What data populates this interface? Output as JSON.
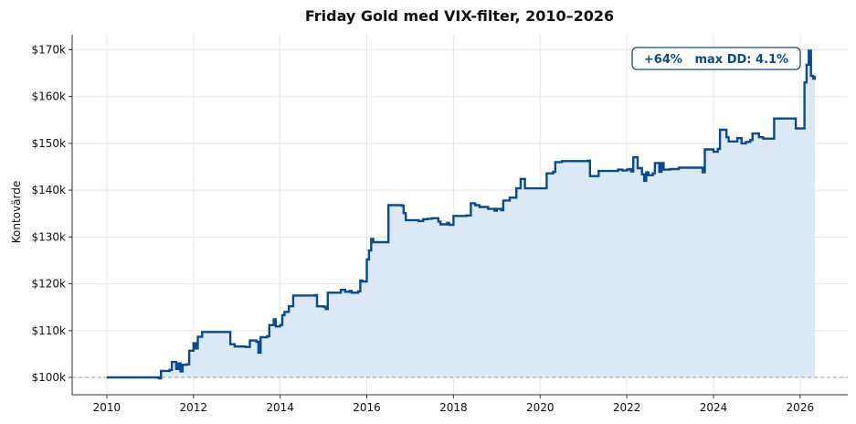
{
  "chart_data": {
    "type": "area",
    "title": "Friday Gold med VIX-filter, 2010–2026",
    "xlabel": "",
    "ylabel": "Kontovärde",
    "xlim": [
      2009.2,
      2027.1
    ],
    "ylim": [
      96300,
      173200
    ],
    "x_ticks": [
      2010,
      2012,
      2014,
      2016,
      2018,
      2020,
      2022,
      2024,
      2026
    ],
    "x_tick_labels": [
      "2010",
      "2012",
      "2014",
      "2016",
      "2018",
      "2020",
      "2022",
      "2024",
      "2026"
    ],
    "y_ticks": [
      100000,
      110000,
      120000,
      130000,
      140000,
      150000,
      160000,
      170000
    ],
    "y_tick_labels": [
      "$100k",
      "$110k",
      "$120k",
      "$130k",
      "$140k",
      "$150k",
      "$160k",
      "$170k"
    ],
    "baseline": 100000,
    "grid": true,
    "annotation": "+64%   max DD: 4.1%",
    "colors": {
      "line": "#0b4a8b",
      "fill": "#dbe8f5",
      "baseline": "#999999",
      "grid": "#e6e6e6"
    },
    "series": [
      {
        "values": [
          [
            2010.0,
            100000
          ],
          [
            2011.1,
            100000
          ],
          [
            2011.2,
            99800
          ],
          [
            2011.25,
            101400
          ],
          [
            2011.45,
            101600
          ],
          [
            2011.5,
            103300
          ],
          [
            2011.6,
            101800
          ],
          [
            2011.65,
            103000
          ],
          [
            2011.7,
            101300
          ],
          [
            2011.75,
            102700
          ],
          [
            2011.85,
            102800
          ],
          [
            2011.9,
            105700
          ],
          [
            2012.0,
            107300
          ],
          [
            2012.05,
            106200
          ],
          [
            2012.1,
            108700
          ],
          [
            2012.2,
            109700
          ],
          [
            2012.4,
            109700
          ],
          [
            2012.8,
            109700
          ],
          [
            2012.85,
            107100
          ],
          [
            2012.95,
            106600
          ],
          [
            2013.2,
            106500
          ],
          [
            2013.3,
            107900
          ],
          [
            2013.45,
            107600
          ],
          [
            2013.5,
            105300
          ],
          [
            2013.55,
            108600
          ],
          [
            2013.7,
            108800
          ],
          [
            2013.75,
            111200
          ],
          [
            2013.85,
            112400
          ],
          [
            2013.9,
            110900
          ],
          [
            2014.0,
            111200
          ],
          [
            2014.05,
            113300
          ],
          [
            2014.1,
            114000
          ],
          [
            2014.2,
            115200
          ],
          [
            2014.3,
            117500
          ],
          [
            2014.5,
            117500
          ],
          [
            2014.8,
            117600
          ],
          [
            2014.85,
            115200
          ],
          [
            2015.0,
            115100
          ],
          [
            2015.05,
            114600
          ],
          [
            2015.1,
            118100
          ],
          [
            2015.3,
            118100
          ],
          [
            2015.4,
            118700
          ],
          [
            2015.5,
            118300
          ],
          [
            2015.6,
            118500
          ],
          [
            2015.65,
            118100
          ],
          [
            2015.8,
            118400
          ],
          [
            2015.85,
            120700
          ],
          [
            2015.9,
            120500
          ],
          [
            2016.0,
            125200
          ],
          [
            2016.05,
            127100
          ],
          [
            2016.1,
            129600
          ],
          [
            2016.15,
            128900
          ],
          [
            2016.45,
            128900
          ],
          [
            2016.5,
            136800
          ],
          [
            2016.8,
            136700
          ],
          [
            2016.85,
            135100
          ],
          [
            2016.9,
            133600
          ],
          [
            2017.2,
            133400
          ],
          [
            2017.3,
            133800
          ],
          [
            2017.4,
            133900
          ],
          [
            2017.5,
            134000
          ],
          [
            2017.65,
            133300
          ],
          [
            2017.7,
            132700
          ],
          [
            2017.85,
            133000
          ],
          [
            2017.9,
            132600
          ],
          [
            2018.0,
            134500
          ],
          [
            2018.3,
            134600
          ],
          [
            2018.4,
            137200
          ],
          [
            2018.5,
            136800
          ],
          [
            2018.6,
            136400
          ],
          [
            2018.8,
            136000
          ],
          [
            2018.95,
            135600
          ],
          [
            2019.0,
            136000
          ],
          [
            2019.1,
            135700
          ],
          [
            2019.15,
            137800
          ],
          [
            2019.3,
            138400
          ],
          [
            2019.45,
            140400
          ],
          [
            2019.55,
            142400
          ],
          [
            2019.65,
            140400
          ],
          [
            2019.8,
            140400
          ],
          [
            2020.1,
            140400
          ],
          [
            2020.15,
            143600
          ],
          [
            2020.3,
            143900
          ],
          [
            2020.35,
            146000
          ],
          [
            2020.5,
            146200
          ],
          [
            2020.7,
            146200
          ],
          [
            2020.9,
            146200
          ],
          [
            2021.1,
            146300
          ],
          [
            2021.15,
            143000
          ],
          [
            2021.3,
            143000
          ],
          [
            2021.35,
            144100
          ],
          [
            2021.6,
            144100
          ],
          [
            2021.8,
            144400
          ],
          [
            2021.9,
            144200
          ],
          [
            2022.0,
            144400
          ],
          [
            2022.05,
            144500
          ],
          [
            2022.1,
            144000
          ],
          [
            2022.15,
            147000
          ],
          [
            2022.25,
            144700
          ],
          [
            2022.35,
            143400
          ],
          [
            2022.4,
            142000
          ],
          [
            2022.45,
            143800
          ],
          [
            2022.5,
            143200
          ],
          [
            2022.6,
            143600
          ],
          [
            2022.65,
            145800
          ],
          [
            2022.75,
            143900
          ],
          [
            2022.8,
            145800
          ],
          [
            2022.85,
            144400
          ],
          [
            2023.0,
            144500
          ],
          [
            2023.2,
            144800
          ],
          [
            2023.45,
            144800
          ],
          [
            2023.7,
            144800
          ],
          [
            2023.75,
            143800
          ],
          [
            2023.8,
            148700
          ],
          [
            2023.95,
            148700
          ],
          [
            2024.0,
            148200
          ],
          [
            2024.1,
            148800
          ],
          [
            2024.15,
            152900
          ],
          [
            2024.3,
            151300
          ],
          [
            2024.35,
            150400
          ],
          [
            2024.55,
            151100
          ],
          [
            2024.65,
            150000
          ],
          [
            2024.75,
            150300
          ],
          [
            2024.85,
            150700
          ],
          [
            2024.9,
            152100
          ],
          [
            2025.05,
            151300
          ],
          [
            2025.15,
            151000
          ],
          [
            2025.3,
            151000
          ],
          [
            2025.35,
            151000
          ],
          [
            2025.4,
            155300
          ],
          [
            2025.6,
            155300
          ],
          [
            2025.85,
            155300
          ],
          [
            2025.9,
            153200
          ],
          [
            2026.05,
            153200
          ],
          [
            2026.1,
            163000
          ],
          [
            2026.15,
            166800
          ],
          [
            2026.2,
            169800
          ],
          [
            2026.25,
            164400
          ],
          [
            2026.3,
            163800
          ],
          [
            2026.34,
            164400
          ]
        ]
      }
    ]
  }
}
